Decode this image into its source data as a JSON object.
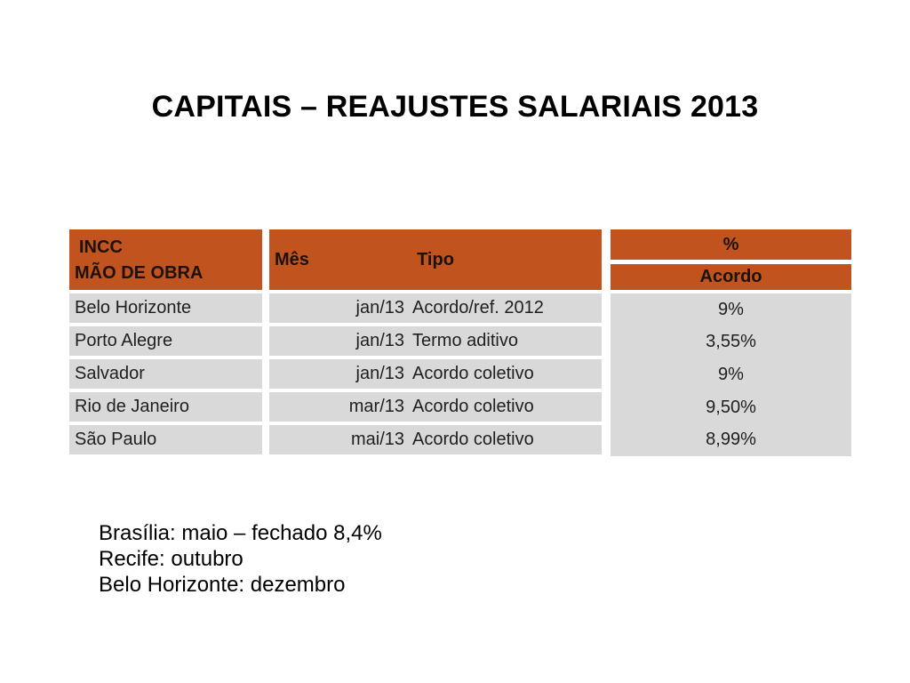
{
  "slide_title": "CAPITAIS – REAJUSTES SALARIAIS 2013",
  "colors": {
    "accent": "#c0531e",
    "row_bg": "#d9d9d9",
    "header_text": "#1c120a",
    "table_text": "#1f1f1f",
    "title_text": "#000000"
  },
  "table": {
    "header": {
      "col1_line1": "INCC",
      "col1_line2": "MÃO DE OBRA",
      "col2_mes": "Mês",
      "col2_tipo": "Tipo",
      "col3_top": "%",
      "col3_bottom": "Acordo"
    },
    "rows": [
      {
        "city": "Belo Horizonte",
        "mes": "jan/13",
        "tipo": "Acordo/ref. 2012",
        "pct": "9%"
      },
      {
        "city": "Porto Alegre",
        "mes": "jan/13",
        "tipo": "Termo aditivo",
        "pct": "3,55%"
      },
      {
        "city": "Salvador",
        "mes": "jan/13",
        "tipo": "Acordo coletivo",
        "pct": "9%"
      },
      {
        "city": "Rio de Janeiro",
        "mes": "mar/13",
        "tipo": "Acordo coletivo",
        "pct": "9,50%"
      },
      {
        "city": "São Paulo",
        "mes": "mai/13",
        "tipo": "Acordo coletivo",
        "pct": "8,99%"
      }
    ]
  },
  "notes": {
    "lines": [
      "Brasília: maio – fechado 8,4%",
      "Recife: outubro",
      "Belo Horizonte: dezembro"
    ]
  }
}
